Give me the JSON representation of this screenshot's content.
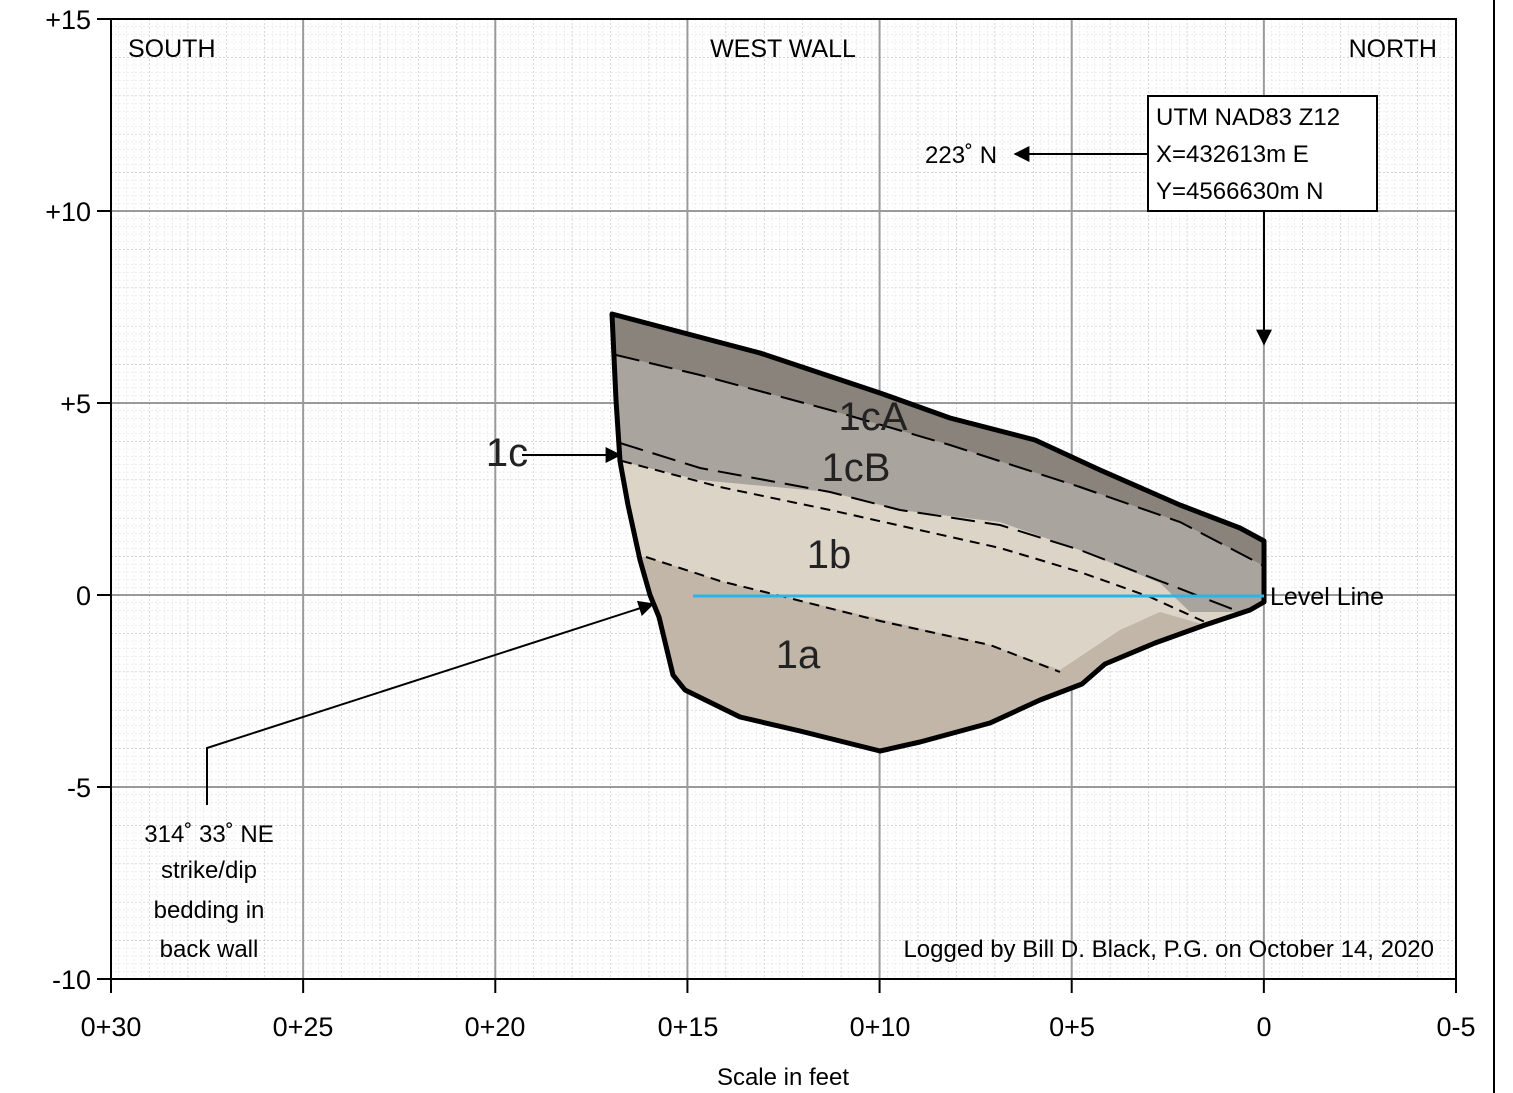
{
  "header": {
    "left": "SOUTH",
    "center": "WEST WALL",
    "right": "NORTH"
  },
  "axes": {
    "x_ticks": [
      "0+30",
      "0+25",
      "0+20",
      "0+15",
      "0+10",
      "0+5",
      "0",
      "0-5"
    ],
    "y_ticks": [
      "+15",
      "+10",
      "+5",
      "0",
      "-5",
      "-10"
    ],
    "x_label": "Scale in feet"
  },
  "coordinates_box": {
    "lines": [
      "UTM NAD83 Z12",
      "X=432613m E",
      "Y=4566630m N"
    ]
  },
  "orientation_label": "223˚ N",
  "bedding_note": {
    "lines": [
      "314˚ 33˚ NE",
      "strike/dip",
      "bedding in",
      "back wall"
    ]
  },
  "units": {
    "u1cA": "1cA",
    "u1cB": "1cB",
    "u1c": "1c",
    "u1b": "1b",
    "u1a": "1a"
  },
  "level_line": {
    "label": "Level Line",
    "color": "#29b6e6"
  },
  "credit": "Logged by Bill D. Black, P.G. on October 14, 2020",
  "colors": {
    "unit_1cA": "#8a837c",
    "unit_1cB": "#aaa49e",
    "unit_1b": "#ddd4c8",
    "unit_1a": "#c1b6a8"
  }
}
